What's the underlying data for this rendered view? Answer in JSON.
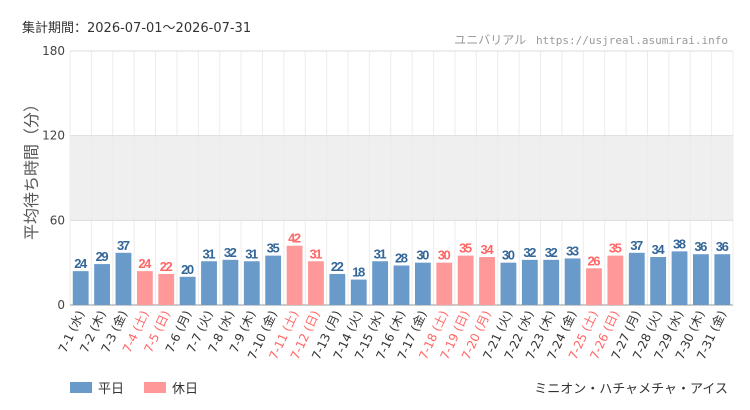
{
  "header": {
    "period": "集計期間：2026-07-01～2026-07-31",
    "brand": "ユニバリアル",
    "url": "https://usjreal.asumirai.info"
  },
  "colors": {
    "weekday": "#6a9ac9",
    "holiday": "#ff9999",
    "holiday_text": "#ff6666",
    "weekday_text": "#336699",
    "grid": "#dddddd",
    "band": "#efefef"
  },
  "legend": {
    "weekday": "平日",
    "holiday": "休日"
  },
  "footer": {
    "attraction": "ミニオン・ハチャメチャ・アイス"
  },
  "chart_data": {
    "type": "bar",
    "ylabel": "平均待ち時間（分）",
    "ylim": [
      0,
      180
    ],
    "yticks": [
      0,
      60,
      120,
      180
    ],
    "band": [
      60,
      120
    ],
    "categories": [
      "7-1 (水)",
      "7-2 (木)",
      "7-3 (金)",
      "7-4 (土)",
      "7-5 (日)",
      "7-6 (月)",
      "7-7 (火)",
      "7-8 (水)",
      "7-9 (木)",
      "7-10 (金)",
      "7-11 (土)",
      "7-12 (日)",
      "7-13 (月)",
      "7-14 (火)",
      "7-15 (水)",
      "7-16 (木)",
      "7-17 (金)",
      "7-18 (土)",
      "7-19 (日)",
      "7-20 (月)",
      "7-21 (火)",
      "7-22 (水)",
      "7-23 (木)",
      "7-24 (金)",
      "7-25 (土)",
      "7-26 (日)",
      "7-27 (月)",
      "7-28 (火)",
      "7-29 (水)",
      "7-30 (木)",
      "7-31 (金)"
    ],
    "values": [
      24,
      29,
      37,
      24,
      22,
      20,
      31,
      32,
      31,
      35,
      42,
      31,
      22,
      18,
      31,
      28,
      30,
      30,
      35,
      34,
      30,
      32,
      32,
      33,
      26,
      35,
      37,
      34,
      38,
      36,
      36
    ],
    "holiday": [
      false,
      false,
      false,
      true,
      true,
      false,
      false,
      false,
      false,
      false,
      true,
      true,
      false,
      false,
      false,
      false,
      false,
      true,
      true,
      true,
      false,
      false,
      false,
      false,
      true,
      true,
      false,
      false,
      false,
      false,
      false
    ]
  }
}
